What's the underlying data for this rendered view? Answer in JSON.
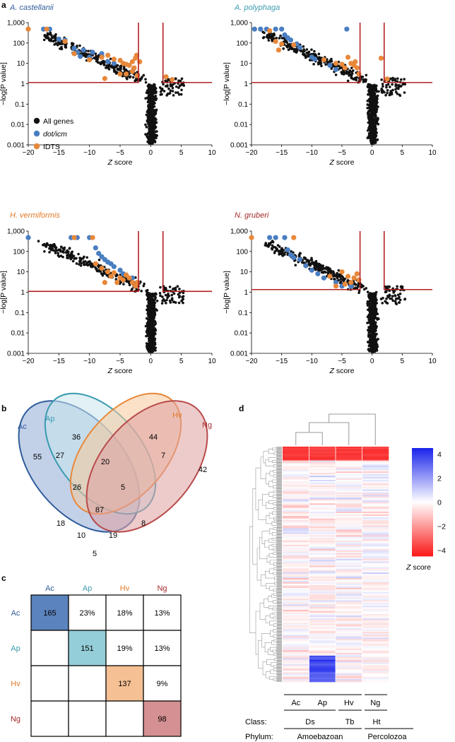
{
  "panel_letters": {
    "a": "a",
    "b": "b",
    "c": "c",
    "d": "d"
  },
  "chart_data": [
    {
      "type": "scatter",
      "title": "A. castellanii",
      "title_color": "#2f5d9b",
      "xlabel": "Z score",
      "ylabel": "−log[P value]",
      "xlim": [
        -20,
        10
      ],
      "ylim_log": [
        0.001,
        1000
      ],
      "xticks": [
        -20,
        -15,
        -10,
        -5,
        0,
        5,
        10
      ],
      "yticks": [
        "0.001",
        "0.01",
        "0.1",
        "1",
        "10",
        "100",
        "1,000"
      ],
      "threshold": {
        "z_low": -2,
        "z_high": 2,
        "p": 1.15
      },
      "legend": {
        "all": "All genes",
        "dot": "dot/icm",
        "idts": "IDTS"
      },
      "colors": {
        "all": "#111111",
        "dot": "#4a7ec2",
        "idts": "#e8883a",
        "line": "#b32020"
      },
      "dot_icm": [
        [
          -17.5,
          480
        ],
        [
          -16.5,
          480
        ],
        [
          -15,
          155
        ],
        [
          -14,
          140
        ],
        [
          -12.5,
          55
        ],
        [
          -12,
          35
        ],
        [
          -11.5,
          22
        ],
        [
          -11,
          45
        ],
        [
          -10,
          20
        ],
        [
          -9.5,
          35
        ],
        [
          -8,
          30
        ],
        [
          -7,
          12
        ],
        [
          -6,
          10
        ]
      ],
      "idts": [
        [
          -20,
          480
        ],
        [
          -17,
          480
        ],
        [
          -14,
          120
        ],
        [
          -12.5,
          30
        ],
        [
          -10,
          15
        ],
        [
          -8,
          20
        ],
        [
          -7,
          25
        ],
        [
          -6,
          16
        ],
        [
          -5,
          14
        ],
        [
          -4.5,
          10
        ],
        [
          -4,
          9
        ],
        [
          -3.5,
          8
        ],
        [
          -3,
          12
        ],
        [
          -2.7,
          6
        ],
        [
          -2.5,
          18
        ],
        [
          -2.3,
          25
        ],
        [
          -3,
          4
        ],
        [
          -4,
          3
        ],
        [
          -2.2,
          2.5
        ],
        [
          -7.5,
          1.8
        ],
        [
          -5,
          3
        ],
        [
          -1.8,
          12
        ],
        [
          2.5,
          2.2
        ],
        [
          3.5,
          1.6
        ]
      ]
    },
    {
      "type": "scatter",
      "title": "A. polyphaga",
      "title_color": "#3a9bb0",
      "xlabel": "Z score",
      "ylabel": "−log[P value]",
      "xlim": [
        -20,
        10
      ],
      "ylim_log": [
        0.001,
        1000
      ],
      "xticks": [
        -20,
        -15,
        -10,
        -5,
        0,
        5,
        10
      ],
      "yticks": [
        "0.001",
        "0.01",
        "0.1",
        "1",
        "10",
        "100",
        "1,000"
      ],
      "threshold": {
        "z_low": -2,
        "z_high": 2,
        "p": 1.15
      },
      "colors": {
        "all": "#111111",
        "dot": "#4a7ec2",
        "idts": "#e8883a",
        "line": "#b32020"
      },
      "dot_icm": [
        [
          -19.5,
          480
        ],
        [
          -18.5,
          480
        ],
        [
          -17.5,
          480
        ],
        [
          -16,
          480
        ],
        [
          -15,
          480
        ],
        [
          -14.5,
          250
        ],
        [
          -14,
          180
        ],
        [
          -13.5,
          140
        ],
        [
          -12.5,
          90
        ],
        [
          -12,
          60
        ],
        [
          -10,
          20
        ],
        [
          -9.5,
          16
        ],
        [
          -7,
          8
        ],
        [
          -4.2,
          480
        ],
        [
          -6,
          5
        ]
      ],
      "idts": [
        [
          -17,
          400
        ],
        [
          -16,
          120
        ],
        [
          -15,
          90
        ],
        [
          -15.5,
          45
        ],
        [
          -13,
          80
        ],
        [
          -8,
          15
        ],
        [
          -6,
          10
        ],
        [
          -5,
          9
        ],
        [
          -4,
          20
        ],
        [
          -3.5,
          10
        ],
        [
          -3,
          8
        ],
        [
          -2.8,
          12
        ],
        [
          -2.5,
          6
        ],
        [
          -2.2,
          3
        ],
        [
          -4.5,
          6
        ],
        [
          2.5,
          1.7
        ],
        [
          1.5,
          18
        ]
      ]
    },
    {
      "type": "scatter",
      "title": "H. vermiformis",
      "title_color": "#e07a2a",
      "xlabel": "Z score",
      "ylabel": "−log[P value]",
      "xlim": [
        -20,
        10
      ],
      "ylim_log": [
        0.001,
        1000
      ],
      "xticks": [
        -20,
        -15,
        -10,
        -5,
        0,
        5,
        10
      ],
      "yticks": [
        "0.001",
        "0.01",
        "0.1",
        "1",
        "10",
        "100",
        "1,000"
      ],
      "threshold": {
        "z_low": -2,
        "z_high": 2,
        "p": 1.1
      },
      "colors": {
        "all": "#111111",
        "dot": "#4a7ec2",
        "idts": "#e8883a",
        "line": "#b32020"
      },
      "dot_icm": [
        [
          -20,
          480
        ],
        [
          -13,
          480
        ],
        [
          -12,
          480
        ],
        [
          -10,
          480
        ],
        [
          -9,
          150
        ],
        [
          -8.5,
          80
        ],
        [
          -8,
          55
        ],
        [
          -7.5,
          40
        ],
        [
          -7,
          30
        ],
        [
          -6.5,
          25
        ],
        [
          -6,
          18
        ],
        [
          -5,
          12
        ],
        [
          -4.5,
          8
        ],
        [
          -3,
          5
        ]
      ],
      "idts": [
        [
          -12.5,
          480
        ],
        [
          -9.5,
          480
        ],
        [
          -9,
          25
        ],
        [
          -8,
          15
        ],
        [
          -7,
          10
        ],
        [
          -6.5,
          6
        ],
        [
          -6,
          9
        ],
        [
          -5,
          5
        ],
        [
          -4.5,
          4
        ],
        [
          -4,
          7
        ],
        [
          -3.5,
          5
        ],
        [
          -3,
          3
        ],
        [
          -2.5,
          2
        ],
        [
          -2.2,
          3
        ],
        [
          -5.5,
          3
        ],
        [
          -7.5,
          3
        ]
      ]
    },
    {
      "type": "scatter",
      "title": "N. gruberi",
      "title_color": "#a52a2a",
      "xlabel": "Z score",
      "ylabel": "−log[P value]",
      "xlim": [
        -20,
        10
      ],
      "ylim_log": [
        0.001,
        1000
      ],
      "xticks": [
        -20,
        -15,
        -10,
        -5,
        0,
        5,
        10
      ],
      "yticks": [
        "0.001",
        "0.01",
        "0.1",
        "1",
        "10",
        "100",
        "1,000"
      ],
      "threshold": {
        "z_low": -2,
        "z_high": 2,
        "p": 1.35
      },
      "colors": {
        "all": "#111111",
        "dot": "#4a7ec2",
        "idts": "#e8883a",
        "line": "#b32020"
      },
      "dot_icm": [
        [
          -17,
          480
        ],
        [
          -16,
          480
        ],
        [
          -14.5,
          480
        ],
        [
          -14,
          120
        ],
        [
          -13.5,
          70
        ],
        [
          -13,
          50
        ],
        [
          -12,
          40
        ],
        [
          -11,
          20
        ],
        [
          -10,
          12
        ],
        [
          -9,
          8
        ],
        [
          -8,
          5
        ],
        [
          -6,
          3
        ],
        [
          -5,
          2
        ],
        [
          -3.5,
          2
        ]
      ],
      "idts": [
        [
          -20,
          480
        ],
        [
          -13,
          480
        ],
        [
          -7,
          6
        ],
        [
          -5,
          10
        ],
        [
          -4,
          6
        ],
        [
          -3,
          5
        ],
        [
          -2.5,
          8
        ],
        [
          -2.2,
          4
        ],
        [
          -3.5,
          3
        ],
        [
          -4.5,
          2.5
        ],
        [
          -6,
          2
        ]
      ]
    }
  ],
  "venn": {
    "labels": {
      "ac": "Ac",
      "ap": "Ap",
      "hv": "Hv",
      "ng": "Ng"
    },
    "colors": {
      "ac": "#2f5d9b",
      "ap": "#3a9bb0",
      "hv": "#e8883a",
      "ng": "#b84a4a"
    },
    "counts": {
      "ac": "55",
      "ap": "36",
      "hv": "44",
      "ng": "42",
      "ac_ap": "27",
      "ap_hv": "20",
      "hv_ng": "7",
      "ac_ap_hv": "26",
      "ap_hv_ng": "5",
      "all": "87",
      "ac_hv": "18",
      "ac_hv_ng": "10",
      "ac_ap_ng": "19",
      "ap_ng": "8",
      "ac_ng": "5"
    }
  },
  "matrix": {
    "headers": [
      "Ac",
      "Ap",
      "Hv",
      "Ng"
    ],
    "header_colors": [
      "#2f5d9b",
      "#3a9bb0",
      "#e07a2a",
      "#a52a2a"
    ],
    "diag_fills": [
      "#5b83bd",
      "#94ced8",
      "#f5c094",
      "#d49092"
    ],
    "rows": [
      [
        "165",
        "23%",
        "18%",
        "13%"
      ],
      [
        "",
        "151",
        "19%",
        "13%"
      ],
      [
        "",
        "",
        "137",
        "9%"
      ],
      [
        "",
        "",
        "",
        "98"
      ]
    ]
  },
  "heatmap": {
    "columns": [
      "Ac",
      "Ap",
      "Hv",
      "Ng"
    ],
    "class_label": "Class:",
    "classes": [
      "Ds",
      "Tb",
      "Ht"
    ],
    "phylum_label": "Phylum:",
    "phyla": [
      "Amoebazoan",
      "Percolozoa"
    ],
    "colorbar": {
      "ticks": [
        "4",
        "2",
        "0",
        "−2",
        "−4"
      ],
      "label_z": "Z",
      "label_rest": " score",
      "min": -4.5,
      "max": 4.5
    }
  }
}
